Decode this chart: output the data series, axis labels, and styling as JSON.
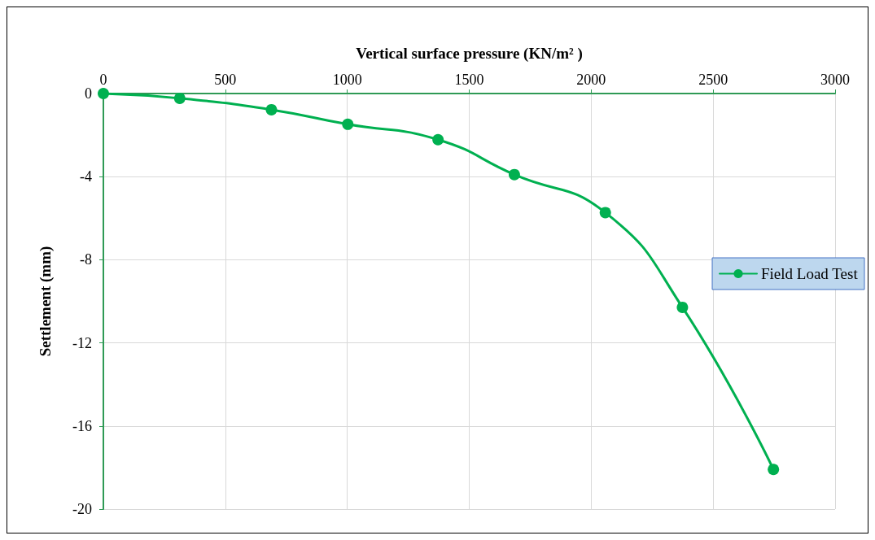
{
  "chart_data": {
    "type": "line",
    "xlabel": "Vertical surface pressure (KN/m² )",
    "ylabel": "Settlement (mm)",
    "series": [
      {
        "name": "Field Load Test",
        "color": "#00b050",
        "x": [
          0,
          313,
          689,
          1002,
          1372,
          1685,
          2058,
          2374,
          2747
        ],
        "values": [
          0,
          -0.23,
          -0.78,
          -1.48,
          -2.22,
          -3.9,
          -5.73,
          -10.29,
          -18.09
        ]
      }
    ],
    "xlim": [
      0,
      3000
    ],
    "xticks": [
      0,
      500,
      1000,
      1500,
      2000,
      2500,
      3000
    ],
    "ylim": [
      -20,
      0
    ],
    "yticks": [
      0,
      -4,
      -8,
      -12,
      -16,
      -20
    ],
    "grid": true,
    "legend": "right",
    "marker": "circle",
    "line_style": "solid"
  }
}
